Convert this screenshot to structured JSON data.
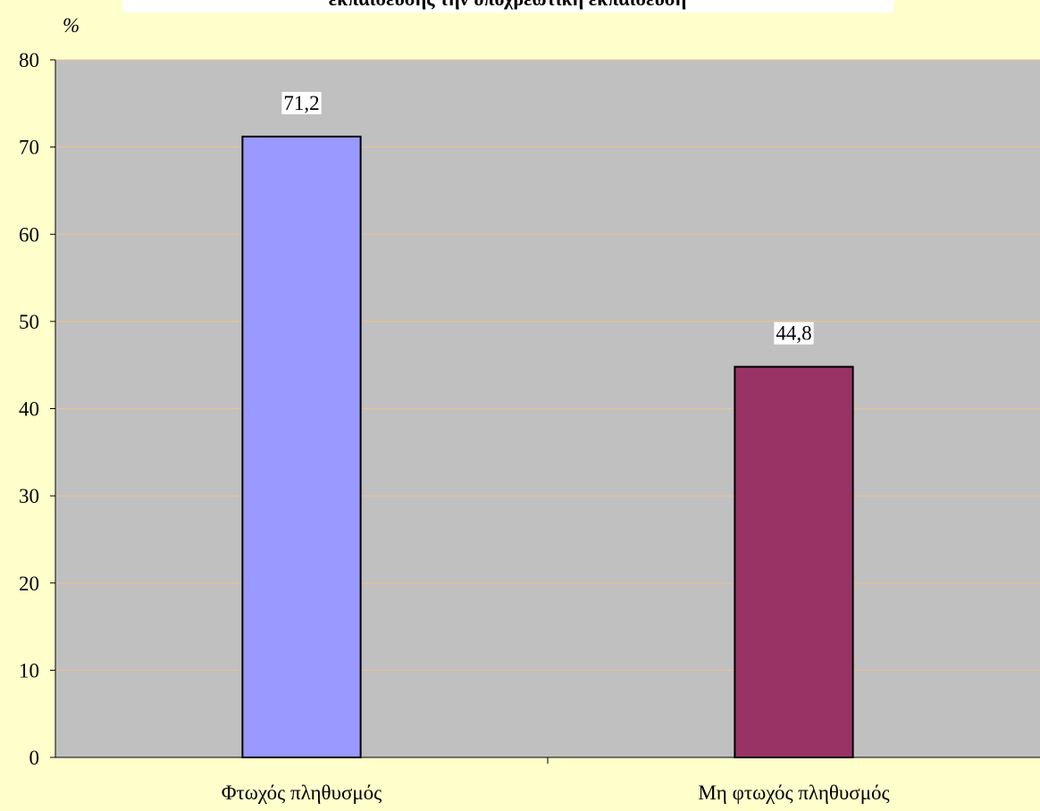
{
  "chart_data": {
    "type": "bar",
    "title": "εκπαίδευσης την υποχρεωτική εκπαίδευση",
    "ylabel": "%",
    "categories": [
      "Φτωχός πληθυσμός",
      "Μη φτωχός πληθυσμός"
    ],
    "values": [
      71.2,
      44.8
    ],
    "value_labels": [
      "71,2",
      "44,8"
    ],
    "colors": [
      "#9999ff",
      "#993366"
    ],
    "ylim": [
      0,
      80
    ],
    "yticks": [
      0,
      10,
      20,
      30,
      40,
      50,
      60,
      70,
      80
    ],
    "grid": true
  }
}
